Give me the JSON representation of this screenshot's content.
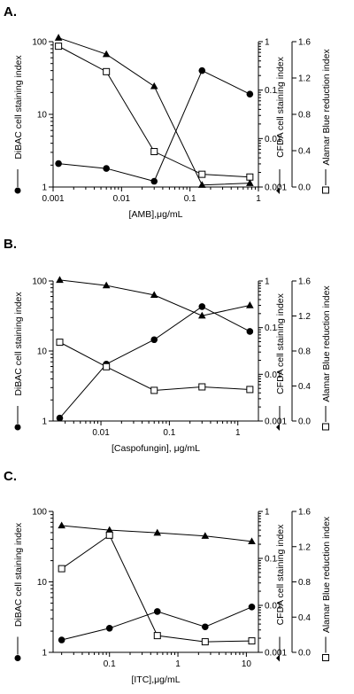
{
  "chart_data": [
    {
      "panel_label": "A.",
      "type": "line",
      "xlabel": "[AMB],μg/mL",
      "xscale": "log",
      "xlim": [
        0.001,
        1
      ],
      "x_ticks": [
        "0.001",
        "0.01",
        "0.1",
        "1"
      ],
      "y_left": {
        "label": "DiBAC cell staining index",
        "scale": "log",
        "range": [
          1,
          100
        ],
        "ticks": [
          "1",
          "10",
          "100"
        ]
      },
      "y_right1": {
        "label": "CFDA cell staining index",
        "scale": "log",
        "range": [
          0.001,
          1
        ],
        "ticks": [
          "0.001",
          "0.01",
          "0.1",
          "1"
        ]
      },
      "y_right2": {
        "label": "Alamar Blue reduction index",
        "scale": "linear",
        "range": [
          0,
          1.6
        ],
        "ticks": [
          "0.0",
          "0.4",
          "0.8",
          "1.2",
          "1.6"
        ]
      },
      "grid": false,
      "series": [
        {
          "marker": "circle",
          "axis": "y_left",
          "x": [
            0.0012,
            0.006,
            0.03,
            0.15,
            0.75
          ],
          "y": [
            2.1,
            1.8,
            1.2,
            40,
            19
          ]
        },
        {
          "marker": "triangle",
          "axis": "y_right1",
          "x": [
            0.0012,
            0.006,
            0.03,
            0.15,
            0.75
          ],
          "y": [
            1.2,
            0.55,
            0.12,
            0.0011,
            0.0012
          ]
        },
        {
          "marker": "square",
          "axis": "y_right2",
          "x": [
            0.0012,
            0.006,
            0.03,
            0.15,
            0.75
          ],
          "y": [
            1.55,
            1.27,
            0.39,
            0.14,
            0.11
          ]
        }
      ]
    },
    {
      "panel_label": "B.",
      "type": "line",
      "xlabel": "[Caspofungin], μg/mL",
      "xscale": "log",
      "xlim": [
        0.002,
        2
      ],
      "x_ticks": [
        "0.01",
        "0.1",
        "1"
      ],
      "y_left": {
        "label": "DiBAC cell staining index",
        "scale": "log",
        "range": [
          1,
          100
        ],
        "ticks": [
          "1",
          "10",
          "100"
        ]
      },
      "y_right1": {
        "label": "CFDA cell staining index",
        "scale": "log",
        "range": [
          0.001,
          1
        ],
        "ticks": [
          "0.001",
          "0.01",
          "0.1",
          "1"
        ]
      },
      "y_right2": {
        "label": "Alamar Blue reduction index",
        "scale": "linear",
        "range": [
          0,
          1.6
        ],
        "ticks": [
          "0.0",
          "0.4",
          "0.8",
          "1.2",
          "1.6"
        ]
      },
      "grid": false,
      "series": [
        {
          "marker": "circle",
          "axis": "y_left",
          "x": [
            0.0025,
            0.012,
            0.06,
            0.3,
            1.5
          ],
          "y": [
            1.1,
            6.5,
            14.5,
            43,
            19
          ]
        },
        {
          "marker": "triangle",
          "axis": "y_right1",
          "x": [
            0.0025,
            0.012,
            0.06,
            0.3,
            1.5
          ],
          "y": [
            1.05,
            0.8,
            0.5,
            0.18,
            0.3
          ]
        },
        {
          "marker": "square",
          "axis": "y_right2",
          "x": [
            0.0025,
            0.012,
            0.06,
            0.3,
            1.5
          ],
          "y": [
            0.9,
            0.62,
            0.35,
            0.39,
            0.36
          ]
        }
      ]
    },
    {
      "panel_label": "C.",
      "type": "line",
      "xlabel": "[ITC],μg/mL",
      "xscale": "log",
      "xlim": [
        0.015,
        15
      ],
      "x_ticks": [
        "0.1",
        "1",
        "10"
      ],
      "y_left": {
        "label": "DiBAC cell staining index",
        "scale": "log",
        "range": [
          1,
          100
        ],
        "ticks": [
          "1",
          "10",
          "100"
        ]
      },
      "y_right1": {
        "label": "CFDA cell staining index",
        "scale": "log",
        "range": [
          0.001,
          1
        ],
        "ticks": [
          "0.001",
          "0.01",
          "0.1",
          "1"
        ]
      },
      "y_right2": {
        "label": "Alamar Blue reduction index",
        "scale": "linear",
        "range": [
          0,
          1.6
        ],
        "ticks": [
          "0.0",
          "0.4",
          "0.8",
          "1.2",
          "1.6"
        ]
      },
      "grid": false,
      "series": [
        {
          "marker": "circle",
          "axis": "y_left",
          "x": [
            0.02,
            0.1,
            0.5,
            2.5,
            12
          ],
          "y": [
            1.5,
            2.2,
            3.8,
            2.3,
            4.4
          ]
        },
        {
          "marker": "triangle",
          "axis": "y_right1",
          "x": [
            0.02,
            0.1,
            0.5,
            2.5,
            12
          ],
          "y": [
            0.5,
            0.4,
            0.35,
            0.3,
            0.23
          ]
        },
        {
          "marker": "square",
          "axis": "y_right2",
          "x": [
            0.02,
            0.1,
            0.5,
            2.5,
            12
          ],
          "y": [
            0.95,
            1.33,
            0.19,
            0.12,
            0.13
          ]
        }
      ]
    }
  ]
}
